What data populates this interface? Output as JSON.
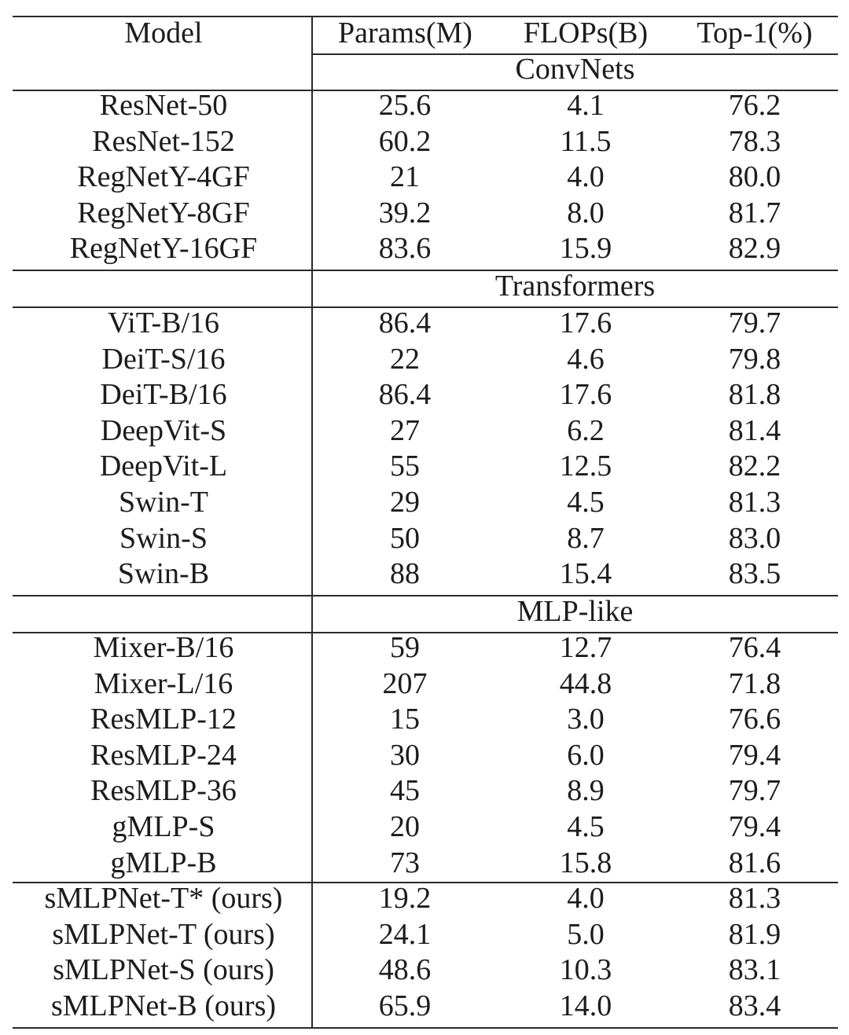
{
  "header": {
    "model": "Model",
    "params": "Params(M)",
    "flops": "FLOPs(B)",
    "top1": "Top-1(%)"
  },
  "groups": [
    {
      "label": "ConvNets",
      "rows": [
        [
          "ResNet-50",
          "25.6",
          "4.1",
          "76.2"
        ],
        [
          "ResNet-152",
          "60.2",
          "11.5",
          "78.3"
        ],
        [
          "RegNetY-4GF",
          "21",
          "4.0",
          "80.0"
        ],
        [
          "RegNetY-8GF",
          "39.2",
          "8.0",
          "81.7"
        ],
        [
          "RegNetY-16GF",
          "83.6",
          "15.9",
          "82.9"
        ]
      ]
    },
    {
      "label": "Transformers",
      "rows": [
        [
          "ViT-B/16",
          "86.4",
          "17.6",
          "79.7"
        ],
        [
          "DeiT-S/16",
          "22",
          "4.6",
          "79.8"
        ],
        [
          "DeiT-B/16",
          "86.4",
          "17.6",
          "81.8"
        ],
        [
          "DeepVit-S",
          "27",
          "6.2",
          "81.4"
        ],
        [
          "DeepVit-L",
          "55",
          "12.5",
          "82.2"
        ],
        [
          "Swin-T",
          "29",
          "4.5",
          "81.3"
        ],
        [
          "Swin-S",
          "50",
          "8.7",
          "83.0"
        ],
        [
          "Swin-B",
          "88",
          "15.4",
          "83.5"
        ]
      ]
    },
    {
      "label": "MLP-like",
      "rows": [
        [
          "Mixer-B/16",
          "59",
          "12.7",
          "76.4"
        ],
        [
          "Mixer-L/16",
          "207",
          "44.8",
          "71.8"
        ],
        [
          "ResMLP-12",
          "15",
          "3.0",
          "76.6"
        ],
        [
          "ResMLP-24",
          "30",
          "6.0",
          "79.4"
        ],
        [
          "ResMLP-36",
          "45",
          "8.9",
          "79.7"
        ],
        [
          "gMLP-S",
          "20",
          "4.5",
          "79.4"
        ],
        [
          "gMLP-B",
          "73",
          "15.8",
          "81.6"
        ]
      ]
    },
    {
      "label": "",
      "rows": [
        [
          "sMLPNet-T* (ours)",
          "19.2",
          "4.0",
          "81.3"
        ],
        [
          "sMLPNet-T (ours)",
          "24.1",
          "5.0",
          "81.9"
        ],
        [
          "sMLPNet-S (ours)",
          "48.6",
          "10.3",
          "83.1"
        ],
        [
          "sMLPNet-B (ours)",
          "65.9",
          "14.0",
          "83.4"
        ]
      ]
    }
  ]
}
